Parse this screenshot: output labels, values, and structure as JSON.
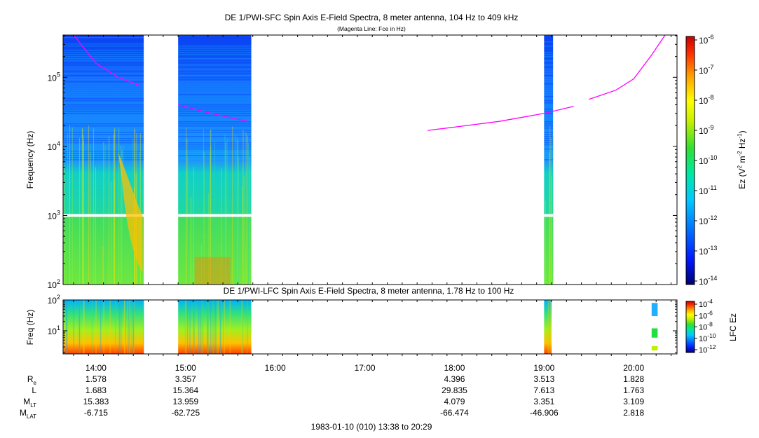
{
  "title": "DE 1/PWI-SFC  Spin Axis E-Field Spectra, 8 meter antenna, 104 Hz to 409 kHz",
  "subtitle": "(Magenta Line: Fce in Hz)",
  "lower_title": "DE 1/PWI-LFC  Spin Axis E-Field Spectra, 8 meter antenna, 1.78 Hz to 100 Hz",
  "footer": "1983-01-10 (010) 13:38 to 20:29",
  "colors": {
    "fce_line": "#ff00ff",
    "gap": "#ffffff"
  },
  "chart_data": [
    {
      "type": "heatmap",
      "title": "DE 1/PWI-SFC  Spin Axis E-Field Spectra, 8 meter antenna, 104 Hz to 409 kHz",
      "subtitle": "(Magenta Line: Fce in Hz)",
      "ylabel": "Frequency (Hz)",
      "yscale": "log",
      "ylim": [
        100,
        409000
      ],
      "xlim_hours": [
        13.633,
        20.483
      ],
      "yticks": [
        {
          "value": 100,
          "base": "10",
          "exp": "2"
        },
        {
          "value": 1000,
          "base": "10",
          "exp": "3"
        },
        {
          "value": 10000,
          "base": "10",
          "exp": "4"
        },
        {
          "value": 100000,
          "base": "10",
          "exp": "5"
        }
      ],
      "colorbar": {
        "label": "Ez (V2 m-2 Hz-1)",
        "scale": "log",
        "range": [
          1e-14,
          1e-06
        ],
        "ticks": [
          {
            "base": "10",
            "exp": "-6"
          },
          {
            "base": "10",
            "exp": "-7"
          },
          {
            "base": "10",
            "exp": "-8"
          },
          {
            "base": "10",
            "exp": "-9"
          },
          {
            "base": "10",
            "exp": "-10"
          },
          {
            "base": "10",
            "exp": "-11"
          },
          {
            "base": "10",
            "exp": "-12"
          },
          {
            "base": "10",
            "exp": "-13"
          },
          {
            "base": "10",
            "exp": "-14"
          }
        ]
      },
      "data_intervals_hours": [
        [
          13.633,
          14.533
        ],
        [
          14.917,
          15.733
        ],
        [
          19.0,
          19.1
        ]
      ],
      "fce_line": {
        "name": "Fce",
        "segments": [
          [
            [
              13.75,
              410000
            ],
            [
              14.0,
              160000
            ],
            [
              14.25,
              100000
            ],
            [
              14.5,
              75000
            ]
          ],
          [
            [
              14.917,
              40000
            ],
            [
              15.2,
              32000
            ],
            [
              15.5,
              26000
            ],
            [
              15.7,
              23000
            ]
          ],
          [
            [
              17.7,
              17000
            ],
            [
              18.0,
              19000
            ],
            [
              18.5,
              23000
            ],
            [
              19.0,
              30000
            ],
            [
              19.33,
              38000
            ]
          ],
          [
            [
              19.5,
              48000
            ],
            [
              19.8,
              65000
            ],
            [
              20.0,
              95000
            ],
            [
              20.2,
              210000
            ],
            [
              20.35,
              409000
            ]
          ]
        ]
      }
    },
    {
      "type": "heatmap",
      "title": "DE 1/PWI-LFC  Spin Axis E-Field Spectra, 8 meter antenna, 1.78 Hz to 100 Hz",
      "ylabel": "Freq (Hz)",
      "yscale": "log",
      "ylim": [
        1.78,
        100
      ],
      "xlim_hours": [
        13.633,
        20.483
      ],
      "yticks": [
        {
          "value": 10,
          "base": "10",
          "exp": "1"
        },
        {
          "value": 100,
          "base": "10",
          "exp": "2"
        }
      ],
      "colorbar": {
        "label": "LFC Ez",
        "scale": "log",
        "range": [
          1e-12,
          0.0001
        ],
        "ticks": [
          {
            "base": "10",
            "exp": "-4"
          },
          {
            "base": "10",
            "exp": "-6"
          },
          {
            "base": "10",
            "exp": "-8"
          },
          {
            "base": "10",
            "exp": "-10"
          },
          {
            "base": "10",
            "exp": "-12"
          }
        ]
      },
      "data_intervals_hours": [
        [
          13.633,
          14.533
        ],
        [
          14.917,
          15.733
        ],
        [
          19.0,
          19.083
        ],
        [
          20.2,
          20.267
        ]
      ]
    }
  ],
  "time_axis": {
    "tick_labels": [
      {
        "hour": 14,
        "label": "14:00"
      },
      {
        "hour": 15,
        "label": "15:00"
      },
      {
        "hour": 16,
        "label": "16:00"
      },
      {
        "hour": 17,
        "label": "17:00"
      },
      {
        "hour": 18,
        "label": "18:00"
      },
      {
        "hour": 19,
        "label": "19:00"
      },
      {
        "hour": 20,
        "label": "20:00"
      }
    ]
  },
  "ephemeris": {
    "rows": [
      {
        "name": "Re",
        "label_base": "R",
        "label_sub": "e",
        "values": [
          "1.578",
          "3.357",
          "",
          "",
          "4.396",
          "3.513",
          "1.828"
        ]
      },
      {
        "name": "L",
        "label_base": "L",
        "label_sub": "",
        "values": [
          "1.683",
          "15.364",
          "",
          "",
          "29.835",
          "7.613",
          "1.763"
        ]
      },
      {
        "name": "MLT",
        "label_base": "M",
        "label_sub": "LT",
        "values": [
          "15.383",
          "13.959",
          "",
          "",
          "4.079",
          "3.351",
          "3.109"
        ]
      },
      {
        "name": "MLAT",
        "label_base": "M",
        "label_sub": "LAT",
        "values": [
          "-6.715",
          "-62.725",
          "",
          "",
          "-66.474",
          "-46.906",
          "2.818"
        ]
      }
    ]
  }
}
